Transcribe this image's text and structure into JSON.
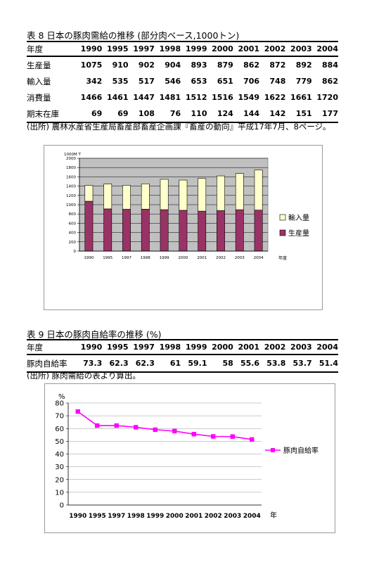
{
  "table8": {
    "title": "表 8  日本の豚肉需給の推移 (部分肉ベース,1000トン)",
    "header": [
      "年度",
      "1990",
      "1995",
      "1997",
      "1998",
      "1999",
      "2000",
      "2001",
      "2002",
      "2003",
      "2004"
    ],
    "rows": [
      {
        "label": "生産量",
        "values": [
          "1075",
          "910",
          "902",
          "904",
          "893",
          "879",
          "862",
          "872",
          "892",
          "884"
        ]
      },
      {
        "label": "輸入量",
        "values": [
          "342",
          "535",
          "517",
          "546",
          "653",
          "651",
          "706",
          "748",
          "779",
          "862"
        ]
      },
      {
        "label": "消費量",
        "values": [
          "1466",
          "1461",
          "1447",
          "1481",
          "1512",
          "1516",
          "1549",
          "1622",
          "1661",
          "1720"
        ]
      },
      {
        "label": "期末在庫",
        "values": [
          "69",
          "69",
          "108",
          "76",
          "110",
          "124",
          "144",
          "142",
          "151",
          "177"
        ]
      }
    ],
    "source": "(出所) 農林水産省生産局畜産部畜産企画課『畜産の動向』平成17年7月、8ページ。"
  },
  "table9": {
    "title": "表 9  日本の豚肉自給率の推移 (%)",
    "header": [
      "年度",
      "1990",
      "1995",
      "1997",
      "1998",
      "1999",
      "2000",
      "2001",
      "2002",
      "2003",
      "2004"
    ],
    "rows": [
      {
        "label": "豚肉自給率",
        "values": [
          "73.3",
          "62.3",
          "62.3",
          "61",
          "59.1",
          "58",
          "55.6",
          "53.8",
          "53.7",
          "51.4"
        ]
      }
    ],
    "source": "(出所) 豚肉需給の表より算出。"
  },
  "chart_data": [
    {
      "type": "bar",
      "stacked": true,
      "categories": [
        "1990",
        "1995",
        "1997",
        "1998",
        "1999",
        "2000",
        "2001",
        "2002",
        "2003",
        "2004"
      ],
      "series": [
        {
          "name": "生産量",
          "values": [
            1075,
            910,
            902,
            904,
            893,
            879,
            862,
            872,
            892,
            884
          ],
          "color": "#993366"
        },
        {
          "name": "輸入量",
          "values": [
            342,
            535,
            517,
            546,
            653,
            651,
            706,
            748,
            779,
            862
          ],
          "color": "#ffffcc"
        }
      ],
      "ylabel": "1000M T",
      "xlabel": "年度",
      "yticks": [
        "0",
        "200",
        "400",
        "600",
        "800",
        "1000",
        "1200",
        "1400",
        "1600",
        "1800",
        "2000"
      ],
      "ylim": [
        0,
        2000
      ],
      "grid": true,
      "plot_bg": "#c0c0c0",
      "legend_position": "right",
      "legend_order": [
        "輸入量",
        "生産量"
      ]
    },
    {
      "type": "line",
      "categories": [
        "1990",
        "1995",
        "1997",
        "1998",
        "1999",
        "2000",
        "2001",
        "2002",
        "2003",
        "2004"
      ],
      "series": [
        {
          "name": "豚肉自給率",
          "values": [
            73.3,
            62.3,
            62.3,
            61,
            59.1,
            58,
            55.6,
            53.8,
            53.7,
            51.4
          ],
          "color": "#ff00ff"
        }
      ],
      "ylabel": "%",
      "xlabel": "年",
      "yticks": [
        "0",
        "10",
        "20",
        "30",
        "40",
        "50",
        "60",
        "70",
        "80"
      ],
      "ylim": [
        0,
        80
      ],
      "grid": true,
      "legend_position": "right"
    }
  ]
}
